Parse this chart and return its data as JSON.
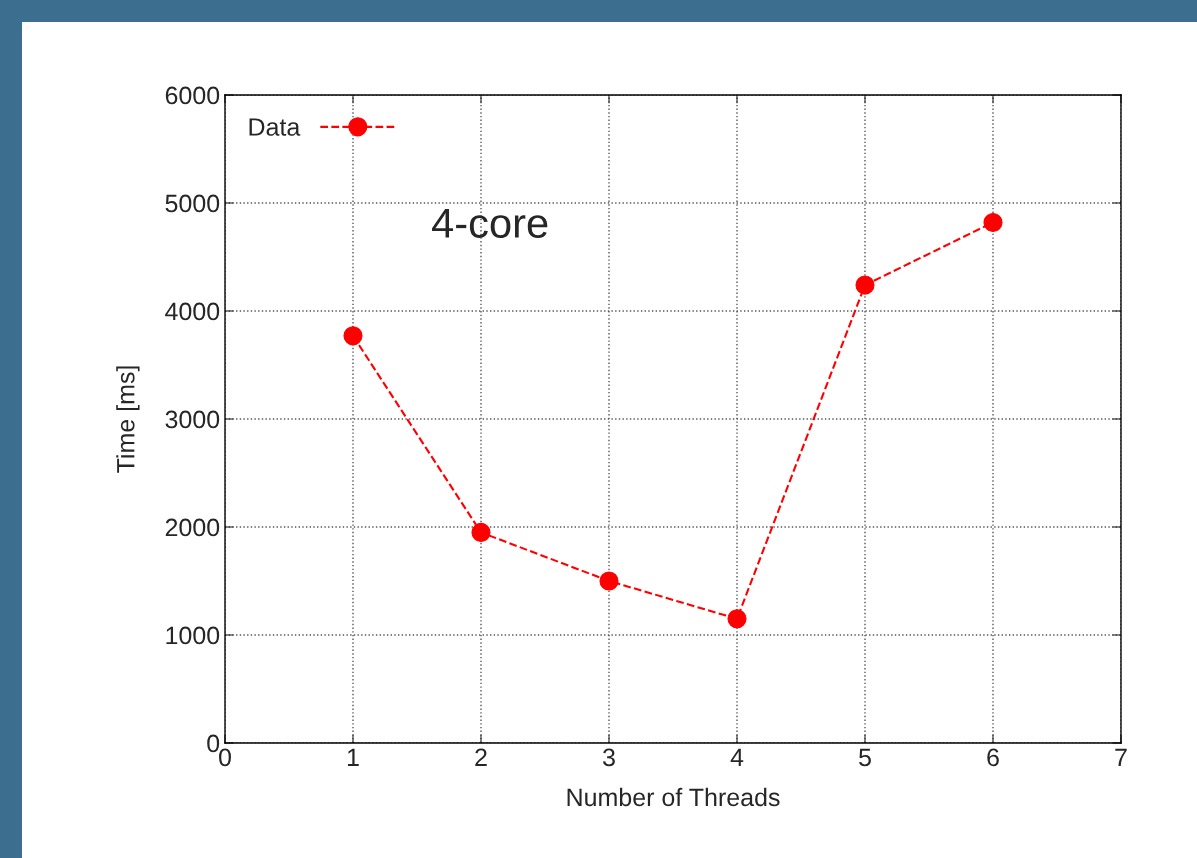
{
  "chart_data": {
    "type": "line",
    "xlabel": "Number of Threads",
    "ylabel": "Time [ms]",
    "x": [
      1,
      2,
      3,
      4,
      5,
      6
    ],
    "series": [
      {
        "name": "Data",
        "color": "#ff0000",
        "values": [
          3770,
          1950,
          1500,
          1150,
          4240,
          4820
        ]
      }
    ],
    "xlim": [
      0,
      7
    ],
    "xticks": [
      0,
      1,
      2,
      3,
      4,
      5,
      6,
      7
    ],
    "ylim": [
      0,
      6000
    ],
    "yticks": [
      0,
      1000,
      2000,
      3000,
      4000,
      5000,
      6000
    ],
    "grid": true,
    "legend": "top left",
    "marker": "circle",
    "line_style": "dashed",
    "annotations": [
      "4-core"
    ]
  }
}
